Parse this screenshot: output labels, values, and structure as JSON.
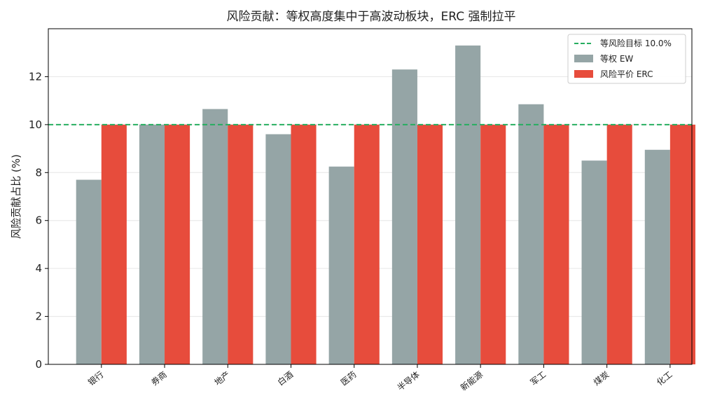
{
  "chart_data": {
    "type": "bar",
    "title": "风险贡献：等权高度集中于高波动板块，ERC 强制拉平",
    "xlabel": "",
    "ylabel": "风险贡献占比 (%)",
    "ylim": [
      0,
      14
    ],
    "yticks": [
      0,
      2,
      4,
      6,
      8,
      10,
      12
    ],
    "grid": "y",
    "legend_position": "top-right",
    "categories": [
      "银行",
      "券商",
      "地产",
      "白酒",
      "医药",
      "半导体",
      "新能源",
      "军工",
      "煤炭",
      "化工"
    ],
    "series": [
      {
        "name": "等权 EW",
        "color": "#95a5a6",
        "values": [
          7.7,
          10.0,
          10.65,
          9.6,
          8.25,
          12.3,
          13.3,
          10.85,
          8.5,
          8.95
        ]
      },
      {
        "name": "风险平价 ERC",
        "color": "#e74c3c",
        "values": [
          10.0,
          10.0,
          10.0,
          10.0,
          10.0,
          10.0,
          10.0,
          10.0,
          10.0,
          10.0
        ]
      }
    ],
    "reference_line": {
      "label": "等风险目标 10.0%",
      "value": 10.0,
      "color": "#27ae60",
      "style": "dashed"
    }
  }
}
